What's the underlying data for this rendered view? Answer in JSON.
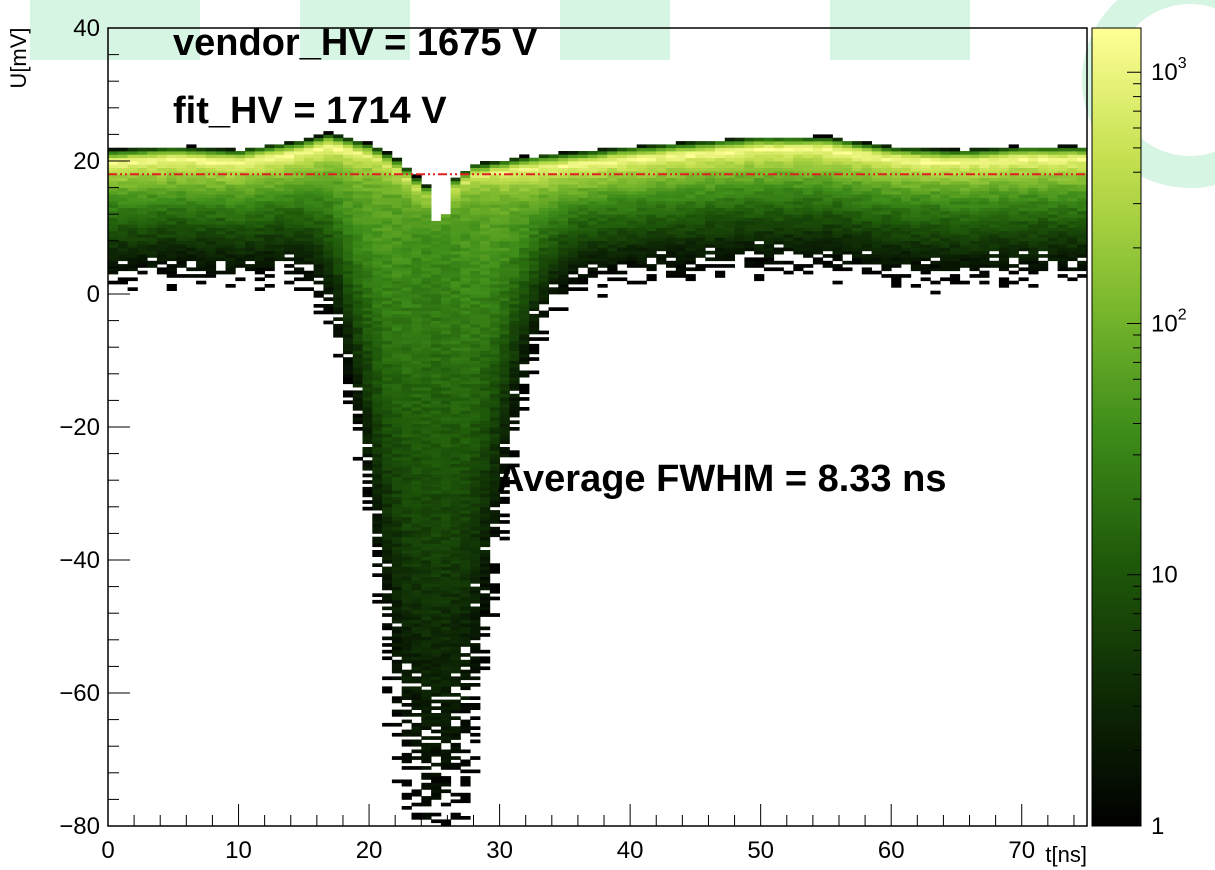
{
  "chart_data": {
    "type": "heatmap",
    "xlabel": "t[ns]",
    "ylabel": "U[mV]",
    "xlim": [
      0,
      75
    ],
    "ylim": [
      -80,
      40
    ],
    "x_ticks": [
      0,
      10,
      20,
      30,
      40,
      50,
      60,
      70
    ],
    "y_ticks": [
      -80,
      -60,
      -40,
      -20,
      0,
      20,
      40
    ],
    "z_scale": "log",
    "zlim": [
      1,
      1500
    ],
    "z_tick_labels": [
      "1",
      "10",
      "10^2",
      "10^3"
    ],
    "colormap": [
      "#000000",
      "#0e2a05",
      "#1f5a0a",
      "#3f8e1a",
      "#7fbb2f",
      "#c3df4f",
      "#ffff96"
    ],
    "reference_line": {
      "y": 18,
      "color": "#e02020",
      "style": "dash-dot"
    },
    "baseline_profile_mV": [
      [
        0,
        19.5
      ],
      [
        5,
        20
      ],
      [
        10,
        19.5
      ],
      [
        15,
        21
      ],
      [
        17,
        22
      ],
      [
        20,
        20.5
      ],
      [
        22,
        18.5
      ],
      [
        24,
        15
      ],
      [
        25,
        13.5
      ],
      [
        26,
        14.5
      ],
      [
        28,
        17.5
      ],
      [
        32,
        18.5
      ],
      [
        40,
        20
      ],
      [
        50,
        21.5
      ],
      [
        55,
        21.5
      ],
      [
        60,
        20
      ],
      [
        65,
        19.5
      ],
      [
        70,
        20
      ],
      [
        75,
        20
      ]
    ],
    "pulse": {
      "center_ns": 25,
      "sigma_ns": 3.5,
      "min_mV": -78
    },
    "annotations": {
      "vendor_hv": "vendor_HV = 1675 V",
      "fit_hv": "fit_HV = 1714 V",
      "fwhm": "Average FWHM =  8.33 ns"
    }
  }
}
